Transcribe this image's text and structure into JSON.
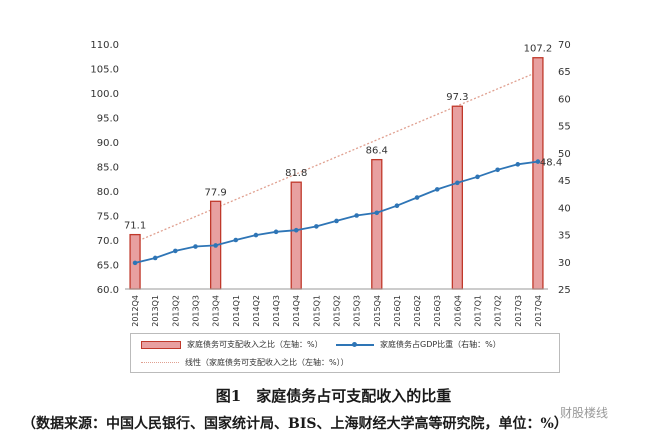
{
  "chart_data": {
    "type": "bar",
    "categories": [
      "2012Q4",
      "2013Q1",
      "2013Q2",
      "2013Q3",
      "2013Q4",
      "2014Q1",
      "2014Q2",
      "2014Q3",
      "2014Q4",
      "2015Q1",
      "2015Q2",
      "2015Q3",
      "2015Q4",
      "2016Q1",
      "2016Q2",
      "2016Q3",
      "2016Q4",
      "2017Q1",
      "2017Q2",
      "2017Q3",
      "2017Q4"
    ],
    "series": [
      {
        "name": "家庭债务可支配收入之比（左轴：%）",
        "type": "bar",
        "axis": "left",
        "color": "#c0392b",
        "values": [
          71.1,
          null,
          null,
          null,
          77.9,
          null,
          null,
          null,
          81.8,
          null,
          null,
          null,
          86.4,
          null,
          null,
          null,
          97.3,
          null,
          null,
          null,
          107.2
        ]
      },
      {
        "name": "家庭债务占GDP比重（右轴：%）",
        "type": "line",
        "axis": "right",
        "color": "#2e75b6",
        "values": [
          29.8,
          30.7,
          32.0,
          32.8,
          33.0,
          34.0,
          34.9,
          35.5,
          35.8,
          36.5,
          37.5,
          38.5,
          39.0,
          40.3,
          41.8,
          43.3,
          44.5,
          45.6,
          46.9,
          47.9,
          48.4
        ],
        "end_label": "48.4"
      },
      {
        "name": "线性（家庭债务可支配收入之比（左轴：%））",
        "type": "trend",
        "axis": "left",
        "color": "#e0a090"
      }
    ],
    "bar_labels": [
      "71.1",
      "77.9",
      "81.8",
      "86.4",
      "97.3",
      "107.2"
    ],
    "ylim_left": [
      60,
      110
    ],
    "yticks_left": [
      "60.0",
      "65.0",
      "70.0",
      "75.0",
      "80.0",
      "85.0",
      "90.0",
      "95.0",
      "100.0",
      "105.0",
      "110.0"
    ],
    "ylim_right": [
      25,
      70
    ],
    "yticks_right": [
      "25",
      "30",
      "35",
      "40",
      "45",
      "50",
      "55",
      "60",
      "65",
      "70"
    ],
    "grid": false,
    "legend_position": "bottom"
  },
  "caption": "图1　家庭债务占可支配收入的比重",
  "source": "（数据来源：中国人民银行、国家统计局、BIS、上海财经大学高等研究院，单位：%）",
  "watermark": "财股楼线"
}
